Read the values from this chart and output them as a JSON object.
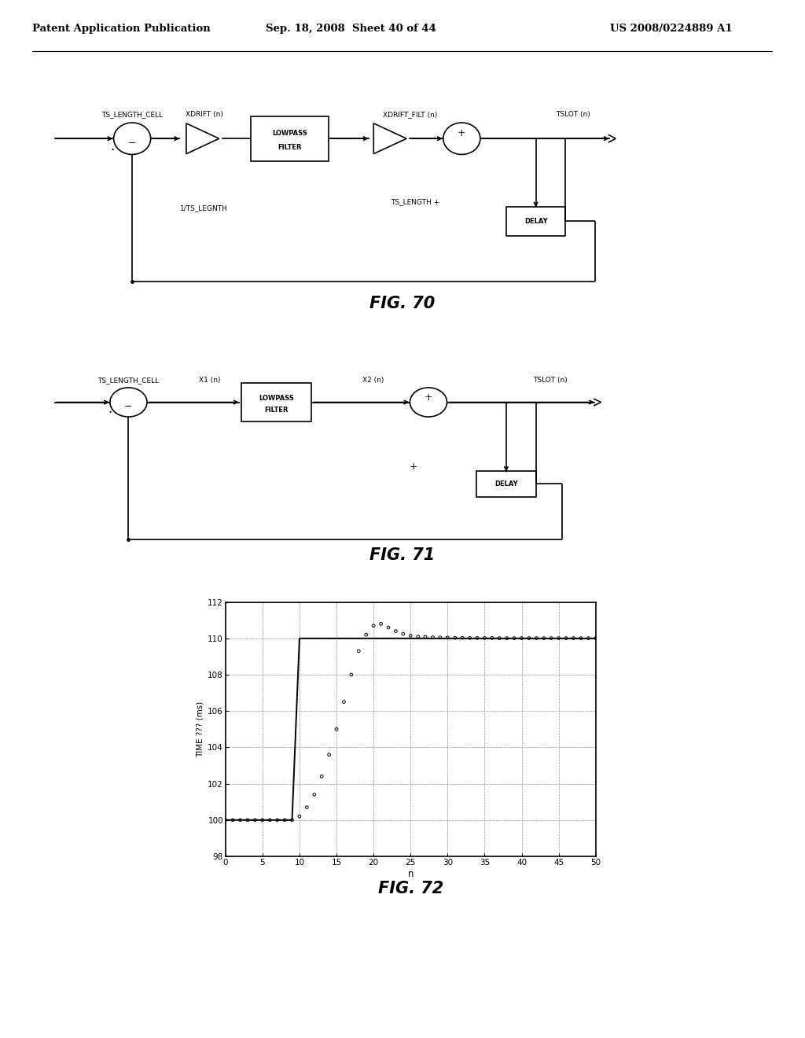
{
  "page_header_left": "Patent Application Publication",
  "page_header_mid": "Sep. 18, 2008  Sheet 40 of 44",
  "page_header_right": "US 2008/0224889 A1",
  "fig70_title": "FIG. 70",
  "fig71_title": "FIG. 71",
  "fig72_title": "FIG. 72",
  "background_color": "#ffffff",
  "graph_xlabel": "n",
  "graph_ylabel": "TIME ??? (ms)",
  "graph_xlim": [
    0,
    50
  ],
  "graph_ylim": [
    98,
    112
  ],
  "graph_xticks": [
    0,
    5,
    10,
    15,
    20,
    25,
    30,
    35,
    40,
    45,
    50
  ],
  "graph_yticks": [
    98,
    100,
    102,
    104,
    106,
    108,
    110,
    112
  ],
  "scatter_n": [
    0,
    1,
    2,
    3,
    4,
    5,
    6,
    7,
    8,
    9,
    10,
    11,
    12,
    13,
    14,
    15,
    16,
    17,
    18,
    19,
    20,
    21,
    22,
    23,
    24,
    25,
    26,
    27,
    28,
    29,
    30,
    31,
    32,
    33,
    34,
    35,
    36,
    37,
    38,
    39,
    40,
    41,
    42,
    43,
    44,
    45,
    46,
    47,
    48,
    49,
    50
  ],
  "scatter_y": [
    100.0,
    100.0,
    100.0,
    100.0,
    100.0,
    100.0,
    100.0,
    100.0,
    100.0,
    100.0,
    100.2,
    100.7,
    101.4,
    102.4,
    103.6,
    105.0,
    106.5,
    108.0,
    109.3,
    110.2,
    110.7,
    110.8,
    110.6,
    110.4,
    110.25,
    110.15,
    110.1,
    110.08,
    110.06,
    110.05,
    110.04,
    110.03,
    110.03,
    110.02,
    110.02,
    110.02,
    110.02,
    110.01,
    110.01,
    110.01,
    110.01,
    110.01,
    110.01,
    110.01,
    110.01,
    110.01,
    110.01,
    110.01,
    110.01,
    110.01,
    110.01
  ]
}
